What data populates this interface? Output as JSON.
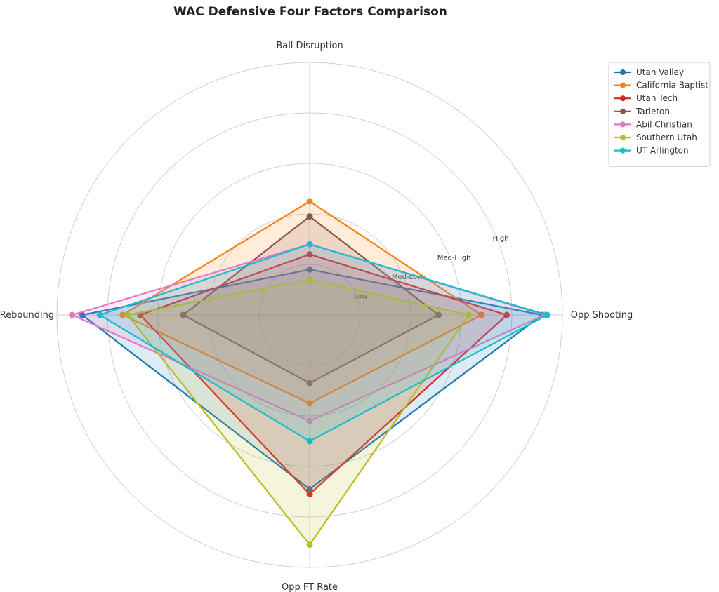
{
  "chart_data": {
    "type": "radar",
    "title": "WAC Defensive Four Factors Comparison",
    "axes": [
      "Opp Shooting",
      "Ball Disruption",
      "Def Rebounding",
      "Opp FT Rate"
    ],
    "rlim": [
      0,
      5
    ],
    "ring_labels": [
      "Low",
      "Med-Low",
      "Med-High",
      "High"
    ],
    "ring_label_values": [
      1,
      2,
      3,
      4
    ],
    "grid": true,
    "legend_position": "top-right",
    "series": [
      {
        "name": "Utah Valley",
        "color": "#1f77b4",
        "values": [
          4.6,
          0.9,
          4.5,
          3.45
        ]
      },
      {
        "name": "California Baptist",
        "color": "#ff7f0e",
        "values": [
          3.4,
          2.25,
          3.7,
          1.75
        ]
      },
      {
        "name": "Utah Tech",
        "color": "#d62728",
        "values": [
          3.9,
          1.2,
          3.35,
          3.55
        ]
      },
      {
        "name": "Tarleton",
        "color": "#8c564b",
        "values": [
          2.55,
          1.95,
          2.5,
          1.35
        ]
      },
      {
        "name": "Abil Christian",
        "color": "#e377c2",
        "values": [
          4.65,
          1.4,
          4.7,
          2.1
        ]
      },
      {
        "name": "Southern Utah",
        "color": "#bcbd22",
        "values": [
          3.15,
          0.7,
          3.6,
          4.55
        ]
      },
      {
        "name": "UT Arlington",
        "color": "#17becf",
        "values": [
          4.7,
          1.4,
          4.15,
          2.5
        ]
      }
    ]
  }
}
